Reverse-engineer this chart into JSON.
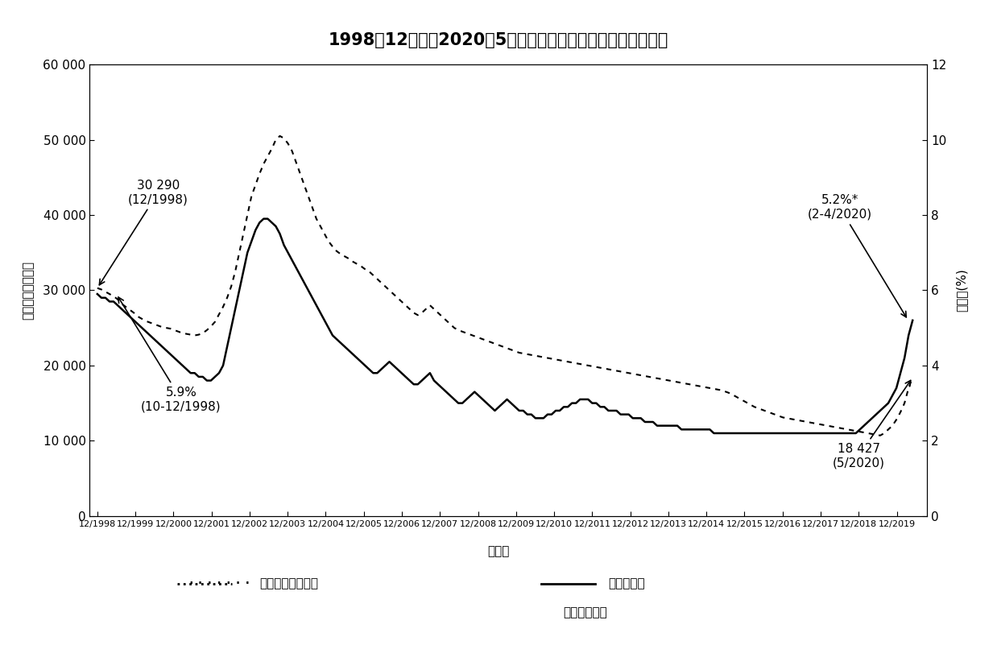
{
  "title": "1998年12月底至2020年5月底失業綜援個案數目及本港失業率",
  "ylabel_left": "失業綜援個案數目",
  "ylabel_right": "失業率(%)",
  "xlabel": "月／年",
  "ylim_left": [
    0,
    60000
  ],
  "ylim_right": [
    0,
    12
  ],
  "yticks_left": [
    0,
    10000,
    20000,
    30000,
    40000,
    50000,
    60000
  ],
  "yticks_right": [
    0,
    2,
    4,
    6,
    8,
    10,
    12
  ],
  "ytick_labels_left": [
    "0",
    "10 000",
    "20 000",
    "30 000",
    "40 000",
    "50 000",
    "60 000"
  ],
  "ytick_labels_right": [
    "0",
    "2",
    "4",
    "6",
    "8",
    "10",
    "12"
  ],
  "xtick_labels": [
    "12/1998",
    "12/1999",
    "12/2000",
    "12/2001",
    "12/2002",
    "12/2003",
    "12/2004",
    "12/2005",
    "12/2006",
    "12/2007",
    "12/2008",
    "12/2009",
    "12/2010",
    "12/2011",
    "12/2012",
    "12/2013",
    "12/2014",
    "12/2015",
    "12/2016",
    "12/2017",
    "12/2018",
    "12/2019"
  ],
  "legend_dotted": "失業綜援個案數目",
  "legend_solid": "本港失業率",
  "legend_note": "＊　臨時數字",
  "background_color": "#ffffff",
  "line_color": "#000000",
  "cases_data": [
    30290,
    30100,
    29800,
    29500,
    29200,
    28800,
    28200,
    27800,
    27400,
    27000,
    26500,
    26200,
    25900,
    25700,
    25500,
    25300,
    25100,
    25000,
    24900,
    24700,
    24500,
    24300,
    24200,
    24100,
    24000,
    24100,
    24300,
    24700,
    25200,
    25800,
    26800,
    27800,
    29000,
    30500,
    32500,
    35000,
    37500,
    40000,
    42500,
    44000,
    45500,
    46800,
    47800,
    48800,
    50000,
    50500,
    50200,
    49500,
    48500,
    47000,
    45500,
    44000,
    42500,
    41000,
    39500,
    38500,
    37500,
    36500,
    35800,
    35200,
    34800,
    34500,
    34200,
    33800,
    33500,
    33200,
    32800,
    32500,
    32000,
    31500,
    31000,
    30500,
    30000,
    29500,
    29000,
    28500,
    28000,
    27500,
    27000,
    26700,
    27000,
    27500,
    28000,
    27500,
    27000,
    26500,
    26000,
    25500,
    25000,
    24700,
    24500,
    24300,
    24100,
    23900,
    23700,
    23500,
    23300,
    23100,
    22900,
    22700,
    22500,
    22300,
    22100,
    21900,
    21700,
    21600,
    21500,
    21400,
    21300,
    21200,
    21100,
    21000,
    20900,
    20800,
    20700,
    20600,
    20500,
    20400,
    20300,
    20200,
    20100,
    20000,
    19900,
    19800,
    19700,
    19600,
    19500,
    19400,
    19300,
    19200,
    19100,
    19000,
    18900,
    18800,
    18700,
    18600,
    18500,
    18400,
    18300,
    18200,
    18100,
    18000,
    17900,
    17800,
    17700,
    17600,
    17500,
    17400,
    17300,
    17200,
    17100,
    17000,
    16900,
    16800,
    16700,
    16500,
    16300,
    16000,
    15700,
    15400,
    15100,
    14800,
    14500,
    14300,
    14100,
    13900,
    13700,
    13500,
    13300,
    13100,
    13000,
    12900,
    12800,
    12700,
    12600,
    12500,
    12400,
    12300,
    12200,
    12100,
    12000,
    11900,
    11800,
    11700,
    11600,
    11500,
    11400,
    11300,
    11200,
    11100,
    11000,
    10900,
    10800,
    10700,
    11000,
    11500,
    12000,
    12800,
    13800,
    15000,
    17000,
    18427
  ],
  "rate_data": [
    5.9,
    5.8,
    5.8,
    5.7,
    5.7,
    5.6,
    5.5,
    5.4,
    5.3,
    5.2,
    5.1,
    5.0,
    4.9,
    4.8,
    4.7,
    4.6,
    4.5,
    4.4,
    4.3,
    4.2,
    4.1,
    4.0,
    3.9,
    3.8,
    3.8,
    3.7,
    3.7,
    3.6,
    3.6,
    3.7,
    3.8,
    4.0,
    4.5,
    5.0,
    5.5,
    6.0,
    6.5,
    7.0,
    7.3,
    7.6,
    7.8,
    7.9,
    7.9,
    7.8,
    7.7,
    7.5,
    7.2,
    7.0,
    6.8,
    6.6,
    6.4,
    6.2,
    6.0,
    5.8,
    5.6,
    5.4,
    5.2,
    5.0,
    4.8,
    4.7,
    4.6,
    4.5,
    4.4,
    4.3,
    4.2,
    4.1,
    4.0,
    3.9,
    3.8,
    3.8,
    3.9,
    4.0,
    4.1,
    4.0,
    3.9,
    3.8,
    3.7,
    3.6,
    3.5,
    3.5,
    3.6,
    3.7,
    3.8,
    3.6,
    3.5,
    3.4,
    3.3,
    3.2,
    3.1,
    3.0,
    3.0,
    3.1,
    3.2,
    3.3,
    3.2,
    3.1,
    3.0,
    2.9,
    2.8,
    2.9,
    3.0,
    3.1,
    3.0,
    2.9,
    2.8,
    2.8,
    2.7,
    2.7,
    2.6,
    2.6,
    2.6,
    2.7,
    2.7,
    2.8,
    2.8,
    2.9,
    2.9,
    3.0,
    3.0,
    3.1,
    3.1,
    3.1,
    3.0,
    3.0,
    2.9,
    2.9,
    2.8,
    2.8,
    2.8,
    2.7,
    2.7,
    2.7,
    2.6,
    2.6,
    2.6,
    2.5,
    2.5,
    2.5,
    2.4,
    2.4,
    2.4,
    2.4,
    2.4,
    2.4,
    2.3,
    2.3,
    2.3,
    2.3,
    2.3,
    2.3,
    2.3,
    2.3,
    2.2,
    2.2,
    2.2,
    2.2,
    2.2,
    2.2,
    2.2,
    2.2,
    2.2,
    2.2,
    2.2,
    2.2,
    2.2,
    2.2,
    2.2,
    2.2,
    2.2,
    2.2,
    2.2,
    2.2,
    2.2,
    2.2,
    2.2,
    2.2,
    2.2,
    2.2,
    2.2,
    2.2,
    2.2,
    2.2,
    2.2,
    2.2,
    2.2,
    2.2,
    2.2,
    2.2,
    2.3,
    2.4,
    2.5,
    2.6,
    2.7,
    2.8,
    2.9,
    3.0,
    3.2,
    3.4,
    3.8,
    4.2,
    4.8,
    5.2
  ]
}
